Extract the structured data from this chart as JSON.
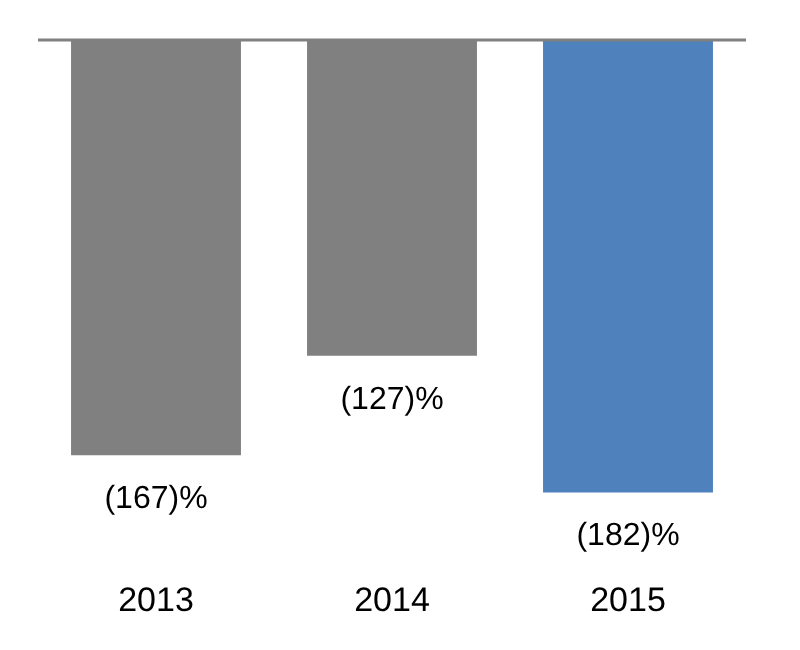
{
  "chart_data": {
    "type": "bar",
    "categories": [
      "2013",
      "2014",
      "2015"
    ],
    "values": [
      -167,
      -127,
      -182
    ],
    "colors": [
      "#808080",
      "#808080",
      "#4f81bd"
    ],
    "value_labels": [
      "(167)%",
      "(127)%",
      "(182)%"
    ],
    "tick_labels": "x",
    "grid": false,
    "legend": false
  }
}
